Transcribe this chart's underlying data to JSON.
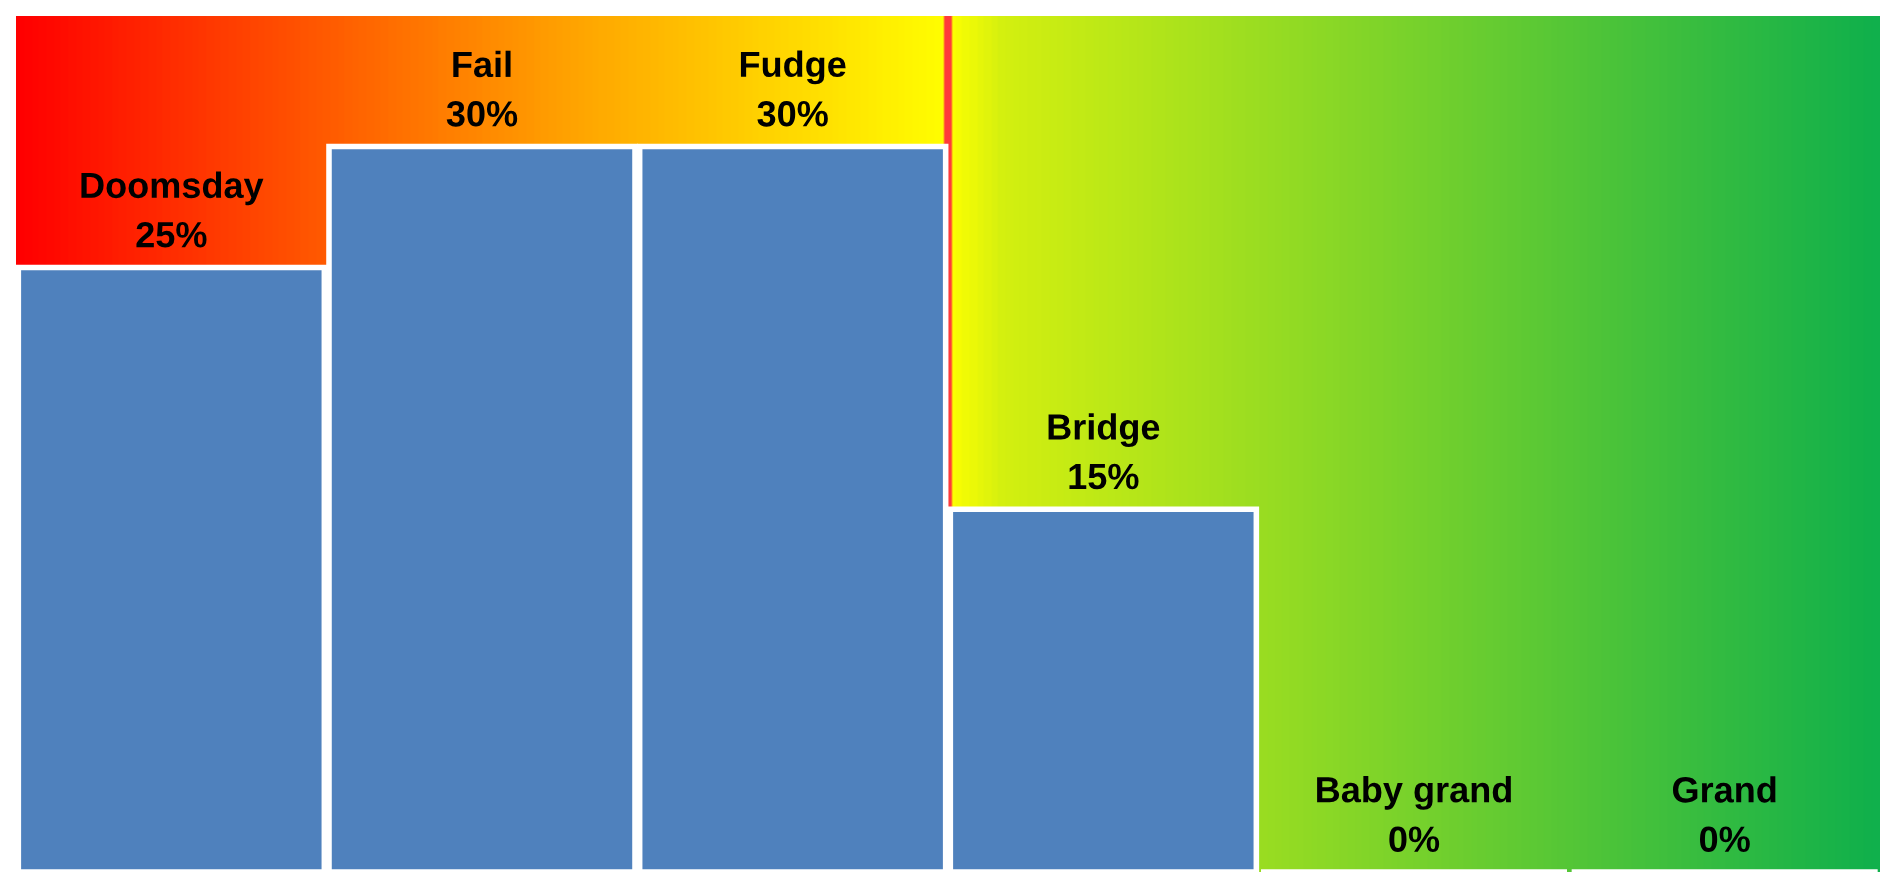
{
  "chart_data": {
    "type": "bar",
    "categories": [
      "Doomsday",
      "Fail",
      "Fudge",
      "Bridge",
      "Baby grand",
      "Grand"
    ],
    "values": [
      25,
      30,
      30,
      15,
      0,
      0
    ],
    "value_labels": [
      "25%",
      "30%",
      "30%",
      "15%",
      "0%",
      "0%"
    ],
    "color": "#4f81bd",
    "tick_labels": false
  }
}
